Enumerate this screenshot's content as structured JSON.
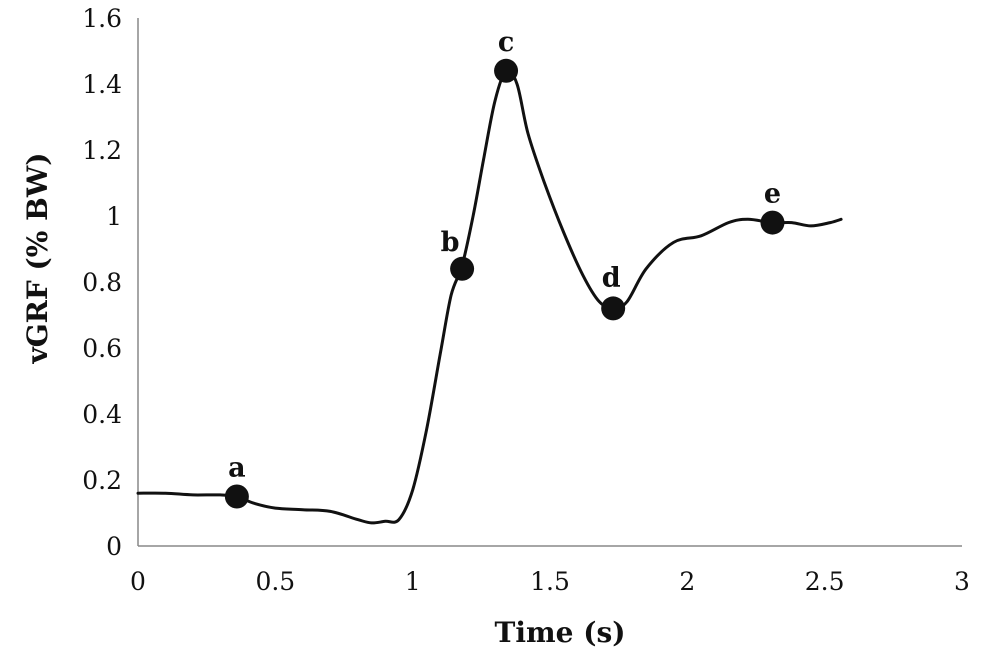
{
  "chart_data": {
    "type": "line",
    "xlabel": "Time (s)",
    "ylabel": "vGRF (% BW)",
    "xlim": [
      0,
      3
    ],
    "ylim": [
      0,
      1.6
    ],
    "x_ticks": [
      "0",
      "0.5",
      "1",
      "1.5",
      "2",
      "2.5",
      "3"
    ],
    "y_ticks": [
      "0",
      "0.2",
      "0.4",
      "0.6",
      "0.8",
      "1",
      "1.2",
      "1.4",
      "1.6"
    ],
    "grid": false,
    "series": [
      {
        "x": [
          0,
          0.1,
          0.2,
          0.3,
          0.36,
          0.42,
          0.5,
          0.6,
          0.7,
          0.8,
          0.85,
          0.9,
          0.95,
          1.0,
          1.05,
          1.1,
          1.14,
          1.18,
          1.22,
          1.26,
          1.3,
          1.34,
          1.38,
          1.42,
          1.48,
          1.55,
          1.62,
          1.68,
          1.73,
          1.78,
          1.85,
          1.95,
          2.05,
          2.15,
          2.22,
          2.31,
          2.38,
          2.45,
          2.52,
          2.56
        ],
        "y": [
          0.16,
          0.16,
          0.155,
          0.155,
          0.15,
          0.13,
          0.115,
          0.11,
          0.105,
          0.08,
          0.07,
          0.075,
          0.08,
          0.17,
          0.35,
          0.58,
          0.76,
          0.85,
          1.0,
          1.18,
          1.35,
          1.44,
          1.4,
          1.25,
          1.1,
          0.95,
          0.82,
          0.74,
          0.72,
          0.74,
          0.84,
          0.92,
          0.94,
          0.98,
          0.99,
          0.98,
          0.98,
          0.97,
          0.98,
          0.99
        ]
      }
    ],
    "points": [
      {
        "label": "a",
        "x": 0.36,
        "y": 0.15
      },
      {
        "label": "b",
        "x": 1.18,
        "y": 0.84
      },
      {
        "label": "c",
        "x": 1.34,
        "y": 1.44
      },
      {
        "label": "d",
        "x": 1.73,
        "y": 0.72
      },
      {
        "label": "e",
        "x": 2.31,
        "y": 0.98
      }
    ]
  }
}
